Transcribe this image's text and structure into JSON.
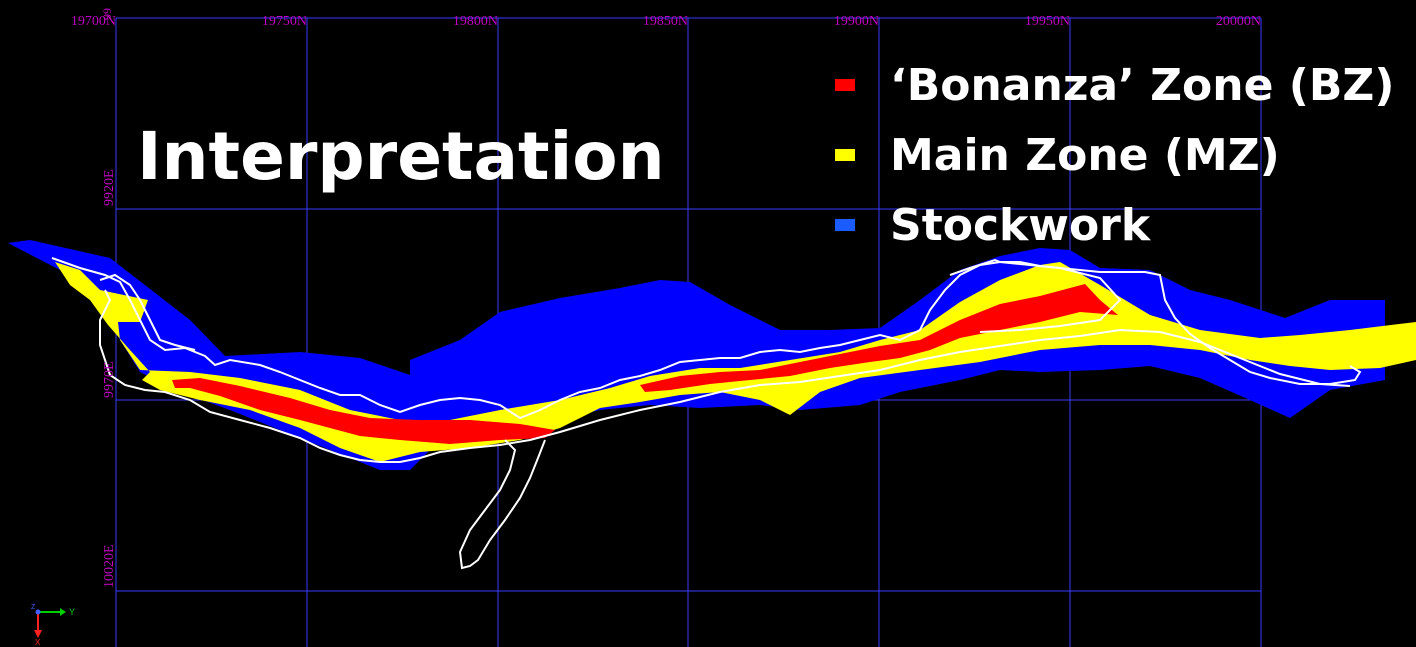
{
  "view": {
    "title": "Interpretation",
    "northing_labels": [
      "19700N",
      "19750N",
      "19800N",
      "19850N",
      "19900N",
      "19950N",
      "20000N"
    ],
    "easting_labels": [
      "9920E",
      "9970E",
      "10020E"
    ],
    "easting_top_partial": "99",
    "colors": {
      "background": "#000000",
      "grid": "#3a3aff",
      "grid_label": "#c000c0",
      "bonanza": "#ff0000",
      "main": "#ffff00",
      "stockwork": "#0000ff",
      "outline": "#ffffff"
    }
  },
  "legend": {
    "items": [
      {
        "label": "‘Bonanza’ Zone (BZ)",
        "color": "#ff0000"
      },
      {
        "label": "Main Zone (MZ)",
        "color": "#ffff00"
      },
      {
        "label": "Stockwork",
        "color": "#1a5cff"
      }
    ]
  },
  "axes_triad": {
    "y_label": "Y",
    "x_label": "X",
    "z_label": "Z"
  }
}
